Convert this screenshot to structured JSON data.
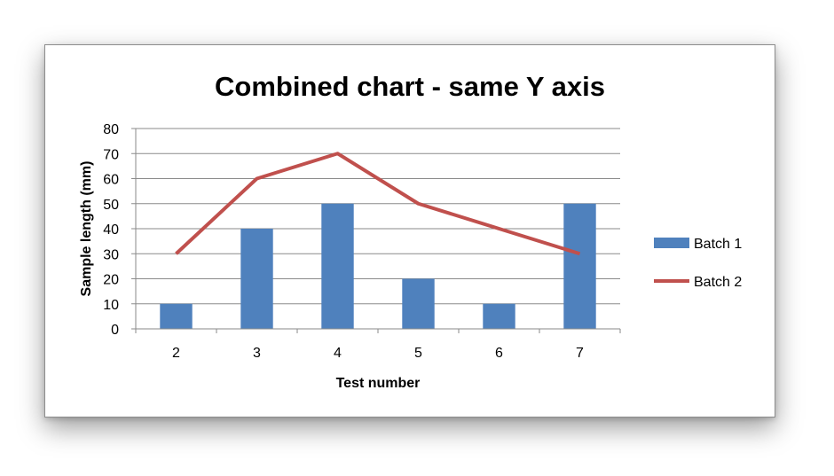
{
  "chart_data": {
    "type": "bar",
    "title": "Combined chart - same Y axis",
    "xlabel": "Test number",
    "ylabel": "Sample length (mm)",
    "categories": [
      "2",
      "3",
      "4",
      "5",
      "6",
      "7"
    ],
    "ylim": [
      0,
      80
    ],
    "yticks": [
      0,
      10,
      20,
      30,
      40,
      50,
      60,
      70,
      80
    ],
    "grid": true,
    "legend_position": "right",
    "series": [
      {
        "name": "Batch 1",
        "type": "bar",
        "color": "#4f81bd",
        "values": [
          10,
          40,
          50,
          20,
          10,
          50
        ]
      },
      {
        "name": "Batch 2",
        "type": "line",
        "color": "#c0504d",
        "values": [
          30,
          60,
          70,
          50,
          40,
          30
        ]
      }
    ]
  }
}
